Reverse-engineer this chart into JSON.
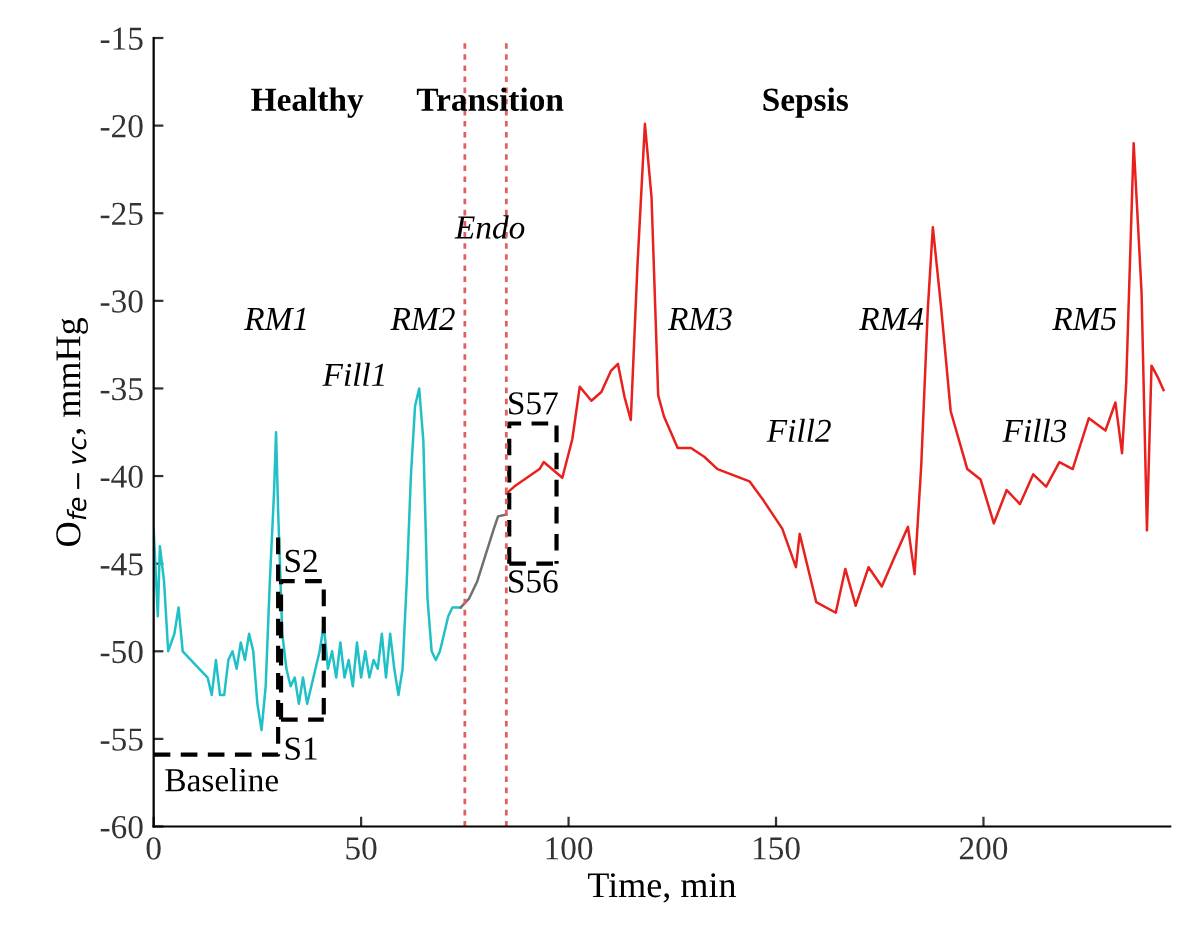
{
  "chart_data": {
    "type": "line",
    "xlabel": "Time, min",
    "ylabel": "O$_{fe−vc}$, mmHg",
    "xlim": [
      0,
      245
    ],
    "ylim": [
      -60,
      -15
    ],
    "xticks": [
      0,
      50,
      100,
      150,
      200
    ],
    "yticks": [
      -60,
      -55,
      -50,
      -45,
      -40,
      -35,
      -30,
      -25,
      -20,
      -15
    ],
    "grid": false,
    "legend": false,
    "series": [
      {
        "color": "#1fc0c6",
        "x": [
          0,
          1,
          1.5,
          2.5,
          3.5,
          5,
          6,
          7,
          9,
          11,
          13,
          14,
          15,
          16,
          17,
          18,
          19,
          20,
          21,
          22,
          23,
          24,
          25,
          26,
          27,
          28,
          29,
          29.5,
          30,
          31,
          32,
          33,
          34,
          35,
          36,
          37,
          38,
          39,
          40,
          41,
          42,
          43,
          44,
          45,
          46,
          47,
          48,
          49,
          50,
          51,
          52,
          53,
          54,
          55,
          56,
          57,
          58,
          59,
          60,
          61,
          62,
          63,
          64,
          65,
          66,
          67,
          68,
          69,
          70,
          71,
          72,
          73,
          74
        ],
        "values": [
          -43,
          -48,
          -44,
          -46,
          -50,
          -49,
          -47.5,
          -50,
          -50.5,
          -51,
          -51.5,
          -52.5,
          -50.5,
          -52.5,
          -52.5,
          -50.5,
          -50,
          -51,
          -49.5,
          -50.5,
          -49,
          -50,
          -53,
          -54.5,
          -52,
          -46,
          -41,
          -37.5,
          -42,
          -49,
          -51,
          -52,
          -51.5,
          -53,
          -51.5,
          -53,
          -52,
          -51,
          -50,
          -48.5,
          -51,
          -50,
          -51.5,
          -49.5,
          -51.5,
          -50.5,
          -52,
          -49.5,
          -51.5,
          -50,
          -51.5,
          -50.5,
          -51,
          -49,
          -51.5,
          -49,
          -51,
          -52.5,
          -51,
          -46,
          -40,
          -36,
          -35,
          -38,
          -47,
          -50,
          -50.5,
          -50,
          -49,
          -48,
          -47.5,
          -47.5,
          -47.5
        ]
      },
      {
        "color": "#707070",
        "x": [
          74,
          76,
          78,
          80,
          82,
          83,
          85
        ],
        "values": [
          -47.5,
          -47,
          -46,
          -44.5,
          -43,
          -42.3,
          -42.2
        ]
      },
      {
        "color": "#e8201e",
        "x": [
          85,
          86.9,
          93,
          94,
          98.5,
          100.9,
          102.7,
          105.5,
          107.9,
          110.2,
          111.9,
          113.5,
          115,
          116.6,
          118.4,
          120,
          121.6,
          123,
          126.3,
          129.5,
          132.7,
          135.9,
          143.6,
          147,
          151.5,
          154.8,
          155.7,
          159.7,
          164.4,
          166.7,
          169.2,
          172.3,
          175.5,
          178.6,
          181.8,
          183.4,
          185,
          186.6,
          187.8,
          189.8,
          192.1,
          196.1,
          199.3,
          202.5,
          205.6,
          208.8,
          212,
          215.1,
          218.3,
          221.5,
          225.4,
          229.4,
          231.8,
          233.4,
          234.4,
          236.2,
          238.1,
          239.4,
          240.5,
          242.1,
          243.4
        ],
        "values": [
          -41,
          -40.6,
          -39.6,
          -39.2,
          -40.1,
          -37.9,
          -34.9,
          -35.7,
          -35.2,
          -34,
          -33.6,
          -35.5,
          -36.8,
          -28,
          -19.9,
          -24.1,
          -35.4,
          -36.6,
          -38.4,
          -38.4,
          -38.9,
          -39.6,
          -40.3,
          -41.4,
          -43,
          -45.2,
          -43.3,
          -47.2,
          -47.8,
          -45.3,
          -47.4,
          -45.2,
          -46.3,
          -44.6,
          -42.9,
          -45.6,
          -39.4,
          -30.4,
          -25.8,
          -30.4,
          -36.3,
          -39.6,
          -40.2,
          -42.7,
          -40.8,
          -41.6,
          -39.9,
          -40.6,
          -39.2,
          -39.6,
          -36.7,
          -37.4,
          -35.8,
          -38.7,
          -34.7,
          -21,
          -29.5,
          -43.1,
          -33.7,
          -34.4,
          -35.1
        ]
      },
      {
        "color": "#000000",
        "line_style": "dashed",
        "x": [
          0,
          30,
          30
        ],
        "values": [
          -55.9,
          -55.9,
          -43.5
        ]
      },
      {
        "color": "#000000",
        "line_style": "dashed",
        "x": [
          30.7,
          30.7,
          41,
          41
        ],
        "values": [
          -53.9,
          -46,
          -46,
          -53.9
        ]
      },
      {
        "color": "#000000",
        "line_style": "dashed",
        "x": [
          30.7,
          41
        ],
        "values": [
          -53.9,
          -53.9
        ]
      },
      {
        "color": "#000000",
        "line_style": "dashed",
        "x": [
          85.7,
          85.7,
          97.1,
          97.1
        ],
        "values": [
          -45,
          -37,
          -37,
          -45
        ]
      },
      {
        "color": "#000000",
        "line_style": "dashed",
        "x": [
          85.7,
          97.1
        ],
        "values": [
          -45,
          -45
        ]
      }
    ],
    "ref_lines": [
      {
        "axis": "x",
        "value": 75,
        "color": "#e06060",
        "line_style": "dotted"
      },
      {
        "axis": "x",
        "value": 85,
        "color": "#e06060",
        "line_style": "dotted"
      }
    ],
    "annotations": [
      "Healthy",
      "Transition",
      "Sepsis",
      "Endo",
      "RM1",
      "RM2",
      "Fill1",
      "RM3",
      "Fill2",
      "RM4",
      "Fill3",
      "RM5",
      "S1",
      "S2",
      "S57",
      "S56",
      "Baseline"
    ]
  }
}
